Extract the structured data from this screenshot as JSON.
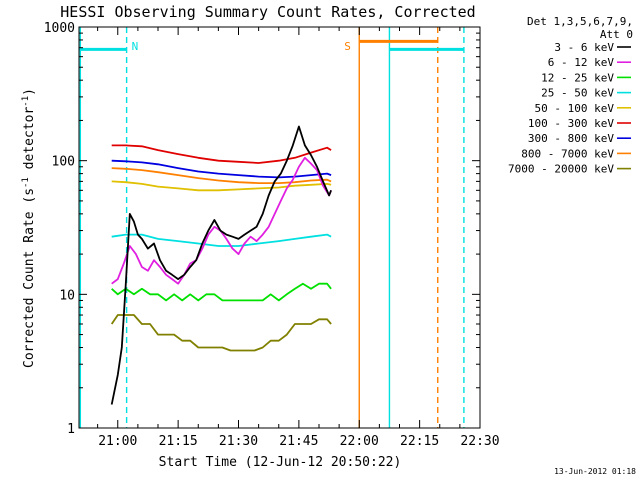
{
  "chart_data": {
    "type": "line",
    "title": "HESSI Observing Summary Count Rates, Corrected",
    "xlabel": "Start Time (12-Jun-12 20:50:22)",
    "ylabel": "Corrected Count Rate (s",
    "ylabel_sup1": "-1",
    "ylabel_mid": " detector",
    "ylabel_sup2": "-1",
    "ylabel_end": ")",
    "yscale": "log",
    "ylim": [
      1,
      1000
    ],
    "xlim": [
      50.37,
      150
    ],
    "x_ticks": [
      60,
      75,
      90,
      105,
      120,
      135,
      150
    ],
    "x_tick_labels": [
      "21:00",
      "21:15",
      "21:30",
      "21:45",
      "22:00",
      "22:15",
      "22:30"
    ],
    "y_ticks": [
      1,
      10,
      100,
      1000
    ],
    "y_tick_labels": [
      "1",
      "10",
      "100",
      "1000"
    ],
    "timestamp": "13-Jun-2012 01:18",
    "legend": {
      "position": "right",
      "header1": "Det 1,3,5,6,7,9,",
      "header2": "Att 0",
      "entries": [
        {
          "label": "3 - 6 keV",
          "color": "#000000"
        },
        {
          "label": "6 - 12 keV",
          "color": "#e020e0"
        },
        {
          "label": "12 - 25 keV",
          "color": "#00e000"
        },
        {
          "label": "25 - 50 keV",
          "color": "#00e0e0"
        },
        {
          "label": "50 - 100 keV",
          "color": "#e0c000"
        },
        {
          "label": "100 - 300 keV",
          "color": "#e00000"
        },
        {
          "label": "300 - 800 keV",
          "color": "#0000e0"
        },
        {
          "label": "800 - 7000 keV",
          "color": "#ff8000"
        },
        {
          "label": "7000 - 20000 keV",
          "color": "#808000"
        }
      ]
    },
    "series": [
      {
        "color": "#e00000",
        "x": [
          58.5,
          62,
          66,
          70,
          75,
          80,
          85,
          90,
          95,
          100,
          104,
          108,
          112,
          113
        ],
        "y": [
          130,
          130,
          128,
          120,
          112,
          105,
          100,
          98,
          96,
          100,
          105,
          115,
          125,
          120
        ]
      },
      {
        "color": "#0000e0",
        "x": [
          58.5,
          62,
          66,
          70,
          75,
          80,
          85,
          90,
          95,
          100,
          104,
          108,
          112,
          113
        ],
        "y": [
          100,
          99,
          97,
          94,
          88,
          83,
          80,
          78,
          76,
          75,
          76,
          78,
          80,
          78
        ]
      },
      {
        "color": "#ff8000",
        "x": [
          58.5,
          62,
          66,
          70,
          75,
          80,
          85,
          90,
          95,
          100,
          104,
          108,
          112,
          113
        ],
        "y": [
          88,
          87,
          85,
          82,
          78,
          74,
          71,
          69,
          68,
          68,
          69,
          71,
          72,
          70
        ]
      },
      {
        "color": "#e0c000",
        "x": [
          58.5,
          62,
          66,
          70,
          75,
          80,
          85,
          90,
          95,
          100,
          104,
          108,
          112,
          113
        ],
        "y": [
          70,
          69,
          67,
          64,
          62,
          60,
          60,
          61,
          62,
          63,
          65,
          66,
          67,
          66
        ]
      },
      {
        "color": "#00e0e0",
        "x": [
          58.5,
          62,
          66,
          70,
          75,
          80,
          85,
          90,
          95,
          100,
          104,
          108,
          112,
          113
        ],
        "y": [
          27,
          28,
          28,
          26,
          25,
          24,
          23,
          23,
          24,
          25,
          26,
          27,
          28,
          27
        ]
      },
      {
        "color": "#00e000",
        "x": [
          58.5,
          60,
          62,
          64,
          66,
          68,
          70,
          72,
          74,
          76,
          78,
          80,
          82,
          84,
          86,
          88,
          90,
          92,
          94,
          96,
          98,
          100,
          102,
          104,
          106,
          108,
          110,
          112,
          113
        ],
        "y": [
          11,
          10,
          11,
          10,
          11,
          10,
          10,
          9,
          10,
          9,
          10,
          9,
          10,
          10,
          9,
          9,
          9,
          9,
          9,
          9,
          10,
          9,
          10,
          11,
          12,
          11,
          12,
          12,
          11
        ]
      },
      {
        "color": "#808000",
        "x": [
          58.5,
          60,
          62,
          64,
          66,
          68,
          70,
          72,
          74,
          76,
          78,
          80,
          82,
          84,
          86,
          88,
          90,
          92,
          94,
          96,
          98,
          100,
          102,
          104,
          106,
          108,
          110,
          112,
          113
        ],
        "y": [
          6,
          7,
          7,
          7,
          6,
          6,
          5,
          5,
          5,
          4.5,
          4.5,
          4,
          4,
          4,
          4,
          3.8,
          3.8,
          3.8,
          3.8,
          4,
          4.5,
          4.5,
          5,
          6,
          6,
          6,
          6.5,
          6.5,
          6
        ]
      },
      {
        "color": "#e020e0",
        "x": [
          58.5,
          60,
          61.5,
          63,
          64.5,
          66,
          67.5,
          69,
          70.5,
          72,
          73.5,
          75,
          76.5,
          78,
          79.5,
          81,
          82.5,
          84,
          85.5,
          87,
          88.5,
          90,
          91.5,
          93,
          94.5,
          96,
          97.5,
          99,
          100.5,
          102,
          103.5,
          105,
          106.5,
          108,
          109.5,
          111,
          112.5,
          113
        ],
        "y": [
          12,
          13,
          17,
          23,
          20,
          16,
          15,
          18,
          16,
          14,
          13,
          12,
          14,
          17,
          18,
          22,
          28,
          32,
          30,
          26,
          22,
          20,
          24,
          27,
          25,
          28,
          32,
          40,
          50,
          62,
          72,
          90,
          105,
          95,
          85,
          65,
          55,
          60
        ]
      },
      {
        "color": "#000000",
        "x": [
          58.5,
          60,
          61,
          62,
          63,
          64,
          65,
          66,
          67.5,
          69,
          70.5,
          72,
          73.5,
          75,
          76.5,
          78,
          79.5,
          81,
          82.5,
          84,
          85.5,
          87,
          88.5,
          90,
          91.5,
          93,
          94.5,
          96,
          97.5,
          99,
          100.5,
          102,
          103.5,
          105,
          106.5,
          108,
          109.5,
          111,
          112.5,
          113
        ],
        "y": [
          1.5,
          2.5,
          4,
          12,
          40,
          35,
          28,
          26,
          22,
          24,
          18,
          15,
          14,
          13,
          14,
          16,
          18,
          24,
          30,
          36,
          30,
          28,
          27,
          26,
          28,
          30,
          32,
          40,
          55,
          70,
          80,
          100,
          130,
          180,
          130,
          110,
          90,
          70,
          55,
          60
        ]
      }
    ],
    "annotations": [
      {
        "text": "N",
        "x": 62.2,
        "color": "#00e0e0"
      },
      {
        "text": "S",
        "x": 118.5,
        "color": "#ff8000"
      }
    ],
    "vlines": [
      {
        "x": 50.7,
        "color": "#00e0e0",
        "dash": false
      },
      {
        "x": 62.2,
        "color": "#00e0e0",
        "dash": true
      },
      {
        "x": 120.0,
        "color": "#ff8000",
        "dash": false
      },
      {
        "x": 127.5,
        "color": "#00e0e0",
        "dash": false
      },
      {
        "x": 139.5,
        "color": "#ff8000",
        "dash": true
      },
      {
        "x": 146.0,
        "color": "#00e0e0",
        "dash": true
      }
    ],
    "hbars": [
      {
        "x0": 50.37,
        "x1": 62.2,
        "y": 680,
        "color": "#00e0e0"
      },
      {
        "x0": 120.0,
        "x1": 139.5,
        "y": 780,
        "color": "#ff8000"
      },
      {
        "x0": 127.5,
        "x1": 146.0,
        "y": 680,
        "color": "#00e0e0"
      }
    ]
  }
}
